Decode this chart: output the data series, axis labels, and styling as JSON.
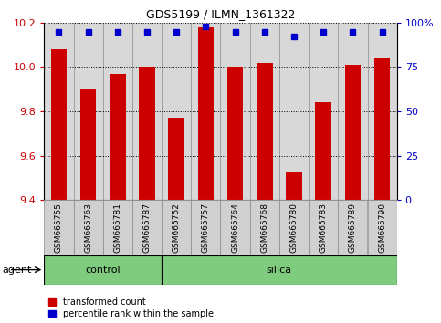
{
  "title": "GDS5199 / ILMN_1361322",
  "samples": [
    "GSM665755",
    "GSM665763",
    "GSM665781",
    "GSM665787",
    "GSM665752",
    "GSM665757",
    "GSM665764",
    "GSM665768",
    "GSM665780",
    "GSM665783",
    "GSM665789",
    "GSM665790"
  ],
  "red_values": [
    10.08,
    9.9,
    9.97,
    10.0,
    9.77,
    10.18,
    10.0,
    10.02,
    9.53,
    9.84,
    10.01,
    10.04
  ],
  "blue_values": [
    95,
    95,
    95,
    95,
    95,
    98,
    95,
    95,
    92,
    95,
    95,
    95
  ],
  "ylim_left": [
    9.4,
    10.2
  ],
  "ylim_right": [
    0,
    100
  ],
  "yticks_left": [
    9.4,
    9.6,
    9.8,
    10.0,
    10.2
  ],
  "yticks_right": [
    0,
    25,
    50,
    75,
    100
  ],
  "ytick_labels_right": [
    "0",
    "25",
    "50",
    "75",
    "100%"
  ],
  "control_count": 4,
  "silica_count": 8,
  "control_color": "#7FCC7F",
  "silica_color": "#7FCC7F",
  "bar_color": "#CC0000",
  "dot_color": "#0000CC",
  "bg_plot": "#D8D8D8",
  "agent_label": "agent",
  "control_label": "control",
  "silica_label": "silica",
  "legend_red": "transformed count",
  "legend_blue": "percentile rank within the sample",
  "bar_width": 0.55,
  "grid_color": "black",
  "label_box_color": "#D0D0D0",
  "label_box_edge": "#888888"
}
